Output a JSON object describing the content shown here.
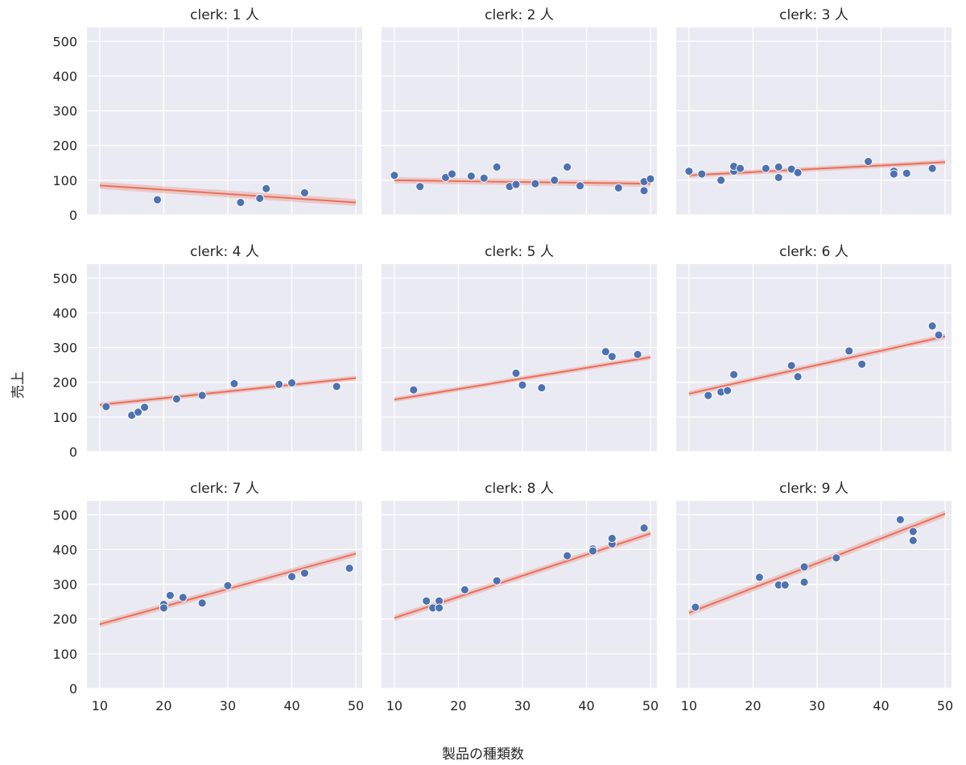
{
  "figure": {
    "xlabel": "製品の種類数",
    "ylabel": "売上"
  },
  "chart_data": {
    "type": "scatter",
    "facet_variable": "clerk",
    "xlabel": "製品の種類数",
    "ylabel": "売上",
    "xlim": [
      8,
      51
    ],
    "ylim": [
      0,
      540
    ],
    "xticks": [
      "10",
      "20",
      "30",
      "40",
      "50"
    ],
    "yticks": [
      "0",
      "100",
      "200",
      "300",
      "400",
      "500"
    ],
    "grid": true,
    "colors": {
      "points": "#4c72b0",
      "fit": "#ea6f5a",
      "panel": "#eaeaf2"
    },
    "panels": [
      {
        "title": "clerk: 1 人",
        "fit": {
          "x0": 10,
          "y0": 85,
          "x1": 50,
          "y1": 36,
          "ci": 10
        },
        "points": [
          [
            19,
            44
          ],
          [
            32,
            36
          ],
          [
            35,
            48
          ],
          [
            36,
            76
          ],
          [
            42,
            64
          ]
        ]
      },
      {
        "title": "clerk: 2 人",
        "fit": {
          "x0": 10,
          "y0": 100,
          "x1": 50,
          "y1": 90,
          "ci": 9
        },
        "points": [
          [
            10,
            114
          ],
          [
            14,
            82
          ],
          [
            18,
            108
          ],
          [
            19,
            118
          ],
          [
            22,
            112
          ],
          [
            24,
            106
          ],
          [
            26,
            138
          ],
          [
            28,
            82
          ],
          [
            29,
            88
          ],
          [
            32,
            90
          ],
          [
            35,
            100
          ],
          [
            37,
            138
          ],
          [
            39,
            84
          ],
          [
            45,
            78
          ],
          [
            49,
            96
          ],
          [
            49,
            70
          ],
          [
            50,
            104
          ]
        ]
      },
      {
        "title": "clerk: 3 人",
        "fit": {
          "x0": 10,
          "y0": 114,
          "x1": 50,
          "y1": 152,
          "ci": 7
        },
        "points": [
          [
            10,
            126
          ],
          [
            12,
            118
          ],
          [
            15,
            100
          ],
          [
            17,
            126
          ],
          [
            17,
            140
          ],
          [
            18,
            134
          ],
          [
            22,
            134
          ],
          [
            24,
            138
          ],
          [
            24,
            108
          ],
          [
            26,
            132
          ],
          [
            27,
            122
          ],
          [
            38,
            154
          ],
          [
            42,
            126
          ],
          [
            42,
            118
          ],
          [
            44,
            120
          ],
          [
            48,
            134
          ]
        ]
      },
      {
        "title": "clerk: 4 人",
        "fit": {
          "x0": 10,
          "y0": 135,
          "x1": 50,
          "y1": 212,
          "ci": 7
        },
        "points": [
          [
            11,
            130
          ],
          [
            15,
            105
          ],
          [
            16,
            114
          ],
          [
            17,
            128
          ],
          [
            22,
            152
          ],
          [
            26,
            162
          ],
          [
            31,
            196
          ],
          [
            38,
            194
          ],
          [
            40,
            198
          ],
          [
            47,
            188
          ]
        ]
      },
      {
        "title": "clerk: 5 人",
        "fit": {
          "x0": 10,
          "y0": 150,
          "x1": 50,
          "y1": 272,
          "ci": 7
        },
        "points": [
          [
            13,
            178
          ],
          [
            29,
            226
          ],
          [
            30,
            192
          ],
          [
            33,
            184
          ],
          [
            43,
            288
          ],
          [
            44,
            274
          ],
          [
            48,
            280
          ]
        ]
      },
      {
        "title": "clerk: 6 人",
        "fit": {
          "x0": 10,
          "y0": 167,
          "x1": 50,
          "y1": 332,
          "ci": 8
        },
        "points": [
          [
            13,
            162
          ],
          [
            15,
            172
          ],
          [
            16,
            176
          ],
          [
            17,
            222
          ],
          [
            26,
            248
          ],
          [
            27,
            216
          ],
          [
            35,
            290
          ],
          [
            37,
            252
          ],
          [
            48,
            362
          ],
          [
            49,
            336
          ]
        ]
      },
      {
        "title": "clerk: 7 人",
        "fit": {
          "x0": 10,
          "y0": 185,
          "x1": 50,
          "y1": 388,
          "ci": 9
        },
        "points": [
          [
            20,
            242
          ],
          [
            20,
            232
          ],
          [
            21,
            268
          ],
          [
            23,
            262
          ],
          [
            26,
            246
          ],
          [
            30,
            296
          ],
          [
            40,
            322
          ],
          [
            42,
            332
          ],
          [
            49,
            346
          ]
        ]
      },
      {
        "title": "clerk: 8 人",
        "fit": {
          "x0": 10,
          "y0": 203,
          "x1": 50,
          "y1": 446,
          "ci": 9
        },
        "points": [
          [
            15,
            252
          ],
          [
            16,
            232
          ],
          [
            17,
            252
          ],
          [
            17,
            232
          ],
          [
            21,
            284
          ],
          [
            26,
            310
          ],
          [
            37,
            382
          ],
          [
            41,
            402
          ],
          [
            41,
            396
          ],
          [
            44,
            416
          ],
          [
            44,
            432
          ],
          [
            49,
            462
          ]
        ]
      },
      {
        "title": "clerk: 9 人",
        "fit": {
          "x0": 10,
          "y0": 218,
          "x1": 50,
          "y1": 503,
          "ci": 10
        },
        "points": [
          [
            11,
            234
          ],
          [
            21,
            320
          ],
          [
            24,
            298
          ],
          [
            25,
            298
          ],
          [
            28,
            350
          ],
          [
            28,
            306
          ],
          [
            33,
            376
          ],
          [
            43,
            486
          ],
          [
            45,
            452
          ],
          [
            45,
            426
          ]
        ]
      }
    ]
  }
}
